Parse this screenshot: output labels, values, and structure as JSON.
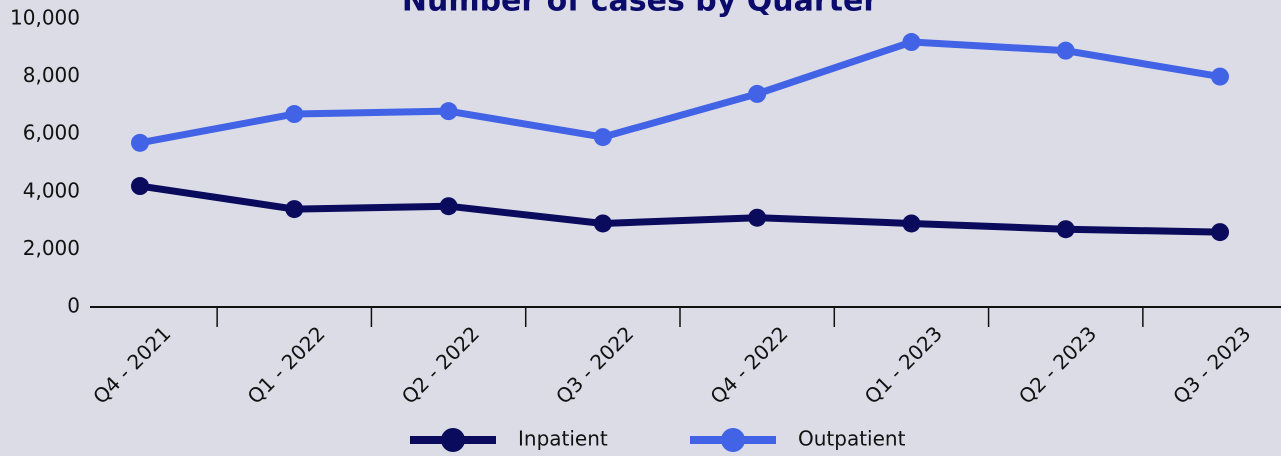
{
  "chart_data": {
    "type": "line",
    "title": "Number of cases by Quarter",
    "categories": [
      "Q4 - 2021",
      "Q1 - 2022",
      "Q2 - 2022",
      "Q3 - 2022",
      "Q4 - 2022",
      "Q1 - 2023",
      "Q2 - 2023",
      "Q3 - 2023"
    ],
    "series": [
      {
        "name": "Inpatient",
        "color": "#0b0b5e",
        "values": [
          4200,
          3400,
          3500,
          2900,
          3100,
          2900,
          2700,
          2600
        ]
      },
      {
        "name": "Outpatient",
        "color": "#4263e6",
        "values": [
          5700,
          6700,
          6800,
          5900,
          7400,
          9200,
          8900,
          8000
        ]
      }
    ],
    "ylim": [
      0,
      10000
    ],
    "yticks": [
      0,
      {
        "value": 2000,
        "label": "2,000"
      },
      {
        "value": 4000,
        "label": "4,000"
      },
      {
        "value": 6000,
        "label": "6,000"
      },
      {
        "value": 8000,
        "label": "8,000"
      },
      {
        "value": 10000,
        "label": "10,000"
      }
    ],
    "grid": false,
    "legend": "bottom"
  }
}
